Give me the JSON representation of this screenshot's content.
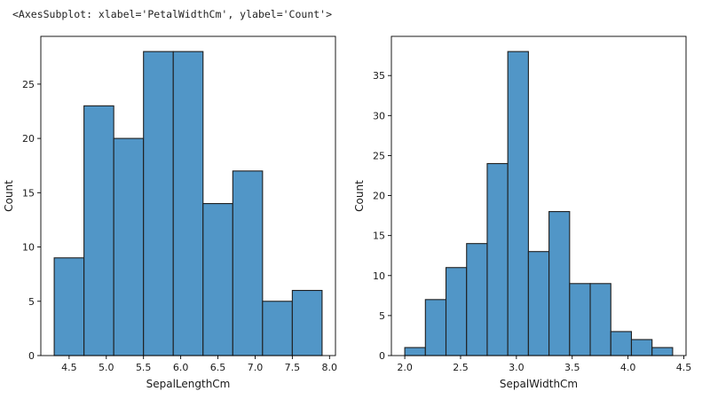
{
  "output_text": "<AxesSubplot: xlabel='PetalWidthCm', ylabel='Count'>",
  "colors": {
    "bar_fill": "#5196c7",
    "bar_edge": "#1f1f1f",
    "axis": "#000000"
  },
  "chart_data": [
    {
      "type": "bar",
      "title": "",
      "xlabel": "SepalLengthCm",
      "ylabel": "Count",
      "bin_edges": [
        4.3,
        4.7,
        5.1,
        5.5,
        5.9,
        6.3,
        6.7,
        7.1,
        7.5,
        7.9
      ],
      "values": [
        9,
        23,
        20,
        28,
        28,
        14,
        17,
        5,
        6
      ],
      "xlim": [
        4.12,
        8.08
      ],
      "ylim": [
        0,
        29.4
      ],
      "xticks": [
        4.5,
        5.0,
        5.5,
        6.0,
        6.5,
        7.0,
        7.5,
        8.0
      ],
      "xtick_labels": [
        "4.5",
        "5.0",
        "5.5",
        "6.0",
        "6.5",
        "7.0",
        "7.5",
        "8.0"
      ],
      "yticks": [
        0,
        5,
        10,
        15,
        20,
        25
      ],
      "ytick_labels": [
        "0",
        "5",
        "10",
        "15",
        "20",
        "25"
      ],
      "grid": false
    },
    {
      "type": "bar",
      "title": "",
      "xlabel": "SepalWidthCm",
      "ylabel": "Count",
      "bin_edges": [
        2.0,
        2.1846,
        2.3692,
        2.5538,
        2.7385,
        2.9231,
        3.1077,
        3.2923,
        3.4769,
        3.6615,
        3.8462,
        4.0308,
        4.2154,
        4.4
      ],
      "values": [
        1,
        7,
        11,
        14,
        24,
        38,
        13,
        18,
        9,
        9,
        3,
        2,
        1
      ],
      "xlim": [
        1.88,
        4.52
      ],
      "ylim": [
        0,
        39.9
      ],
      "xticks": [
        2.0,
        2.5,
        3.0,
        3.5,
        4.0,
        4.5
      ],
      "xtick_labels": [
        "2.0",
        "2.5",
        "3.0",
        "3.5",
        "4.0",
        "4.5"
      ],
      "yticks": [
        0,
        5,
        10,
        15,
        20,
        25,
        30,
        35
      ],
      "ytick_labels": [
        "0",
        "5",
        "10",
        "15",
        "20",
        "25",
        "30",
        "35"
      ],
      "grid": false
    }
  ]
}
